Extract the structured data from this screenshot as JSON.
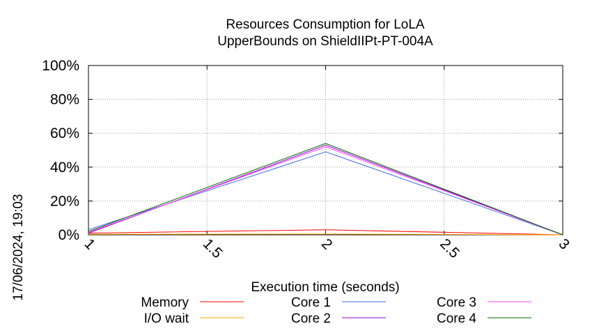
{
  "chart_data": {
    "type": "line",
    "title_lines": [
      "Resources Consumption for LoLA",
      "UpperBounds on ShieldIIPt-PT-004A"
    ],
    "xlabel": "Execution time (seconds)",
    "ylabel": "",
    "timestamp": "17/06/2024, 19:03",
    "xlim": [
      1,
      3
    ],
    "ylim": [
      0,
      100
    ],
    "grid": true,
    "legend_position": "bottom",
    "x_ticks": [
      {
        "value": 1,
        "label": "1"
      },
      {
        "value": 1.5,
        "label": "1.5"
      },
      {
        "value": 2,
        "label": "2"
      },
      {
        "value": 2.5,
        "label": "2.5"
      },
      {
        "value": 3,
        "label": "3"
      }
    ],
    "y_ticks": [
      {
        "value": 0,
        "label": "0%"
      },
      {
        "value": 20,
        "label": "20%"
      },
      {
        "value": 40,
        "label": "40%"
      },
      {
        "value": 60,
        "label": "60%"
      },
      {
        "value": 80,
        "label": "80%"
      },
      {
        "value": 100,
        "label": "100%"
      }
    ],
    "series": [
      {
        "name": "Memory",
        "color": "#ff0000",
        "x": [
          1,
          2,
          3
        ],
        "y": [
          1,
          3,
          0
        ]
      },
      {
        "name": "I/O wait",
        "color": "#ffa500",
        "x": [
          1,
          2,
          3
        ],
        "y": [
          0.3,
          0.5,
          0
        ]
      },
      {
        "name": "Core 1",
        "color": "#4169e1",
        "x": [
          1,
          2,
          3
        ],
        "y": [
          3,
          49,
          0
        ]
      },
      {
        "name": "Core 2",
        "color": "#9400d3",
        "x": [
          1,
          2,
          3
        ],
        "y": [
          1,
          53,
          0
        ]
      },
      {
        "name": "Core 3",
        "color": "#ff44ff",
        "x": [
          1,
          2,
          3
        ],
        "y": [
          1.5,
          52,
          0
        ]
      },
      {
        "name": "Core 4",
        "color": "#006400",
        "x": [
          1,
          2,
          3
        ],
        "y": [
          2,
          54,
          0
        ]
      }
    ]
  }
}
